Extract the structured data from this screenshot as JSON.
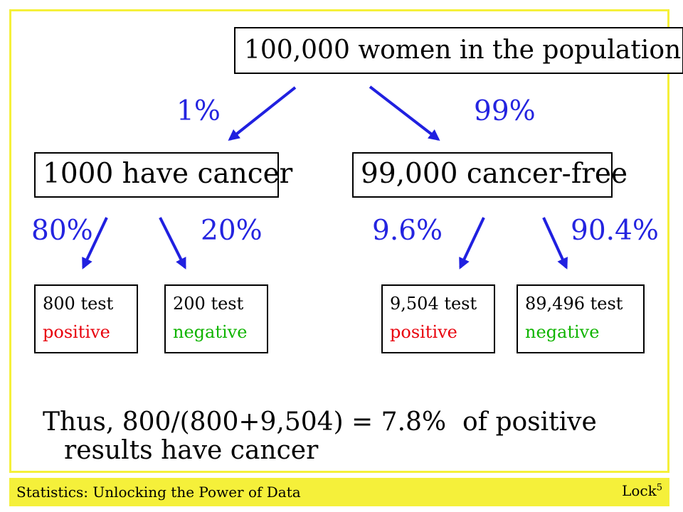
{
  "top_box": "100,000 women in the population",
  "branch1": {
    "left_pct": "1%",
    "right_pct": "99%"
  },
  "mid": {
    "left": "1000 have cancer",
    "right": "99,000 cancer-free"
  },
  "branch2": {
    "p1": "80%",
    "p2": "20%",
    "p3": "9.6%",
    "p4": "90.4%"
  },
  "leaves": [
    {
      "line1": "800 test",
      "line2": "positive"
    },
    {
      "line1": "200 test",
      "line2": "negative"
    },
    {
      "line1": "9,504 test",
      "line2": "positive"
    },
    {
      "line1": "89,496 test",
      "line2": "negative"
    }
  ],
  "conclusion": {
    "line1": "Thus, 800/(800+9,504) = 7.8%  of positive",
    "line2": "results have cancer"
  },
  "footer": {
    "left": "Statistics: Unlocking the Power of Data",
    "right": "Lock",
    "right_sup": "5"
  },
  "colors": {
    "arrow": "#2020e0",
    "positive": "#e8000b",
    "negative": "#0fb400",
    "accent": "#f5f03a"
  }
}
